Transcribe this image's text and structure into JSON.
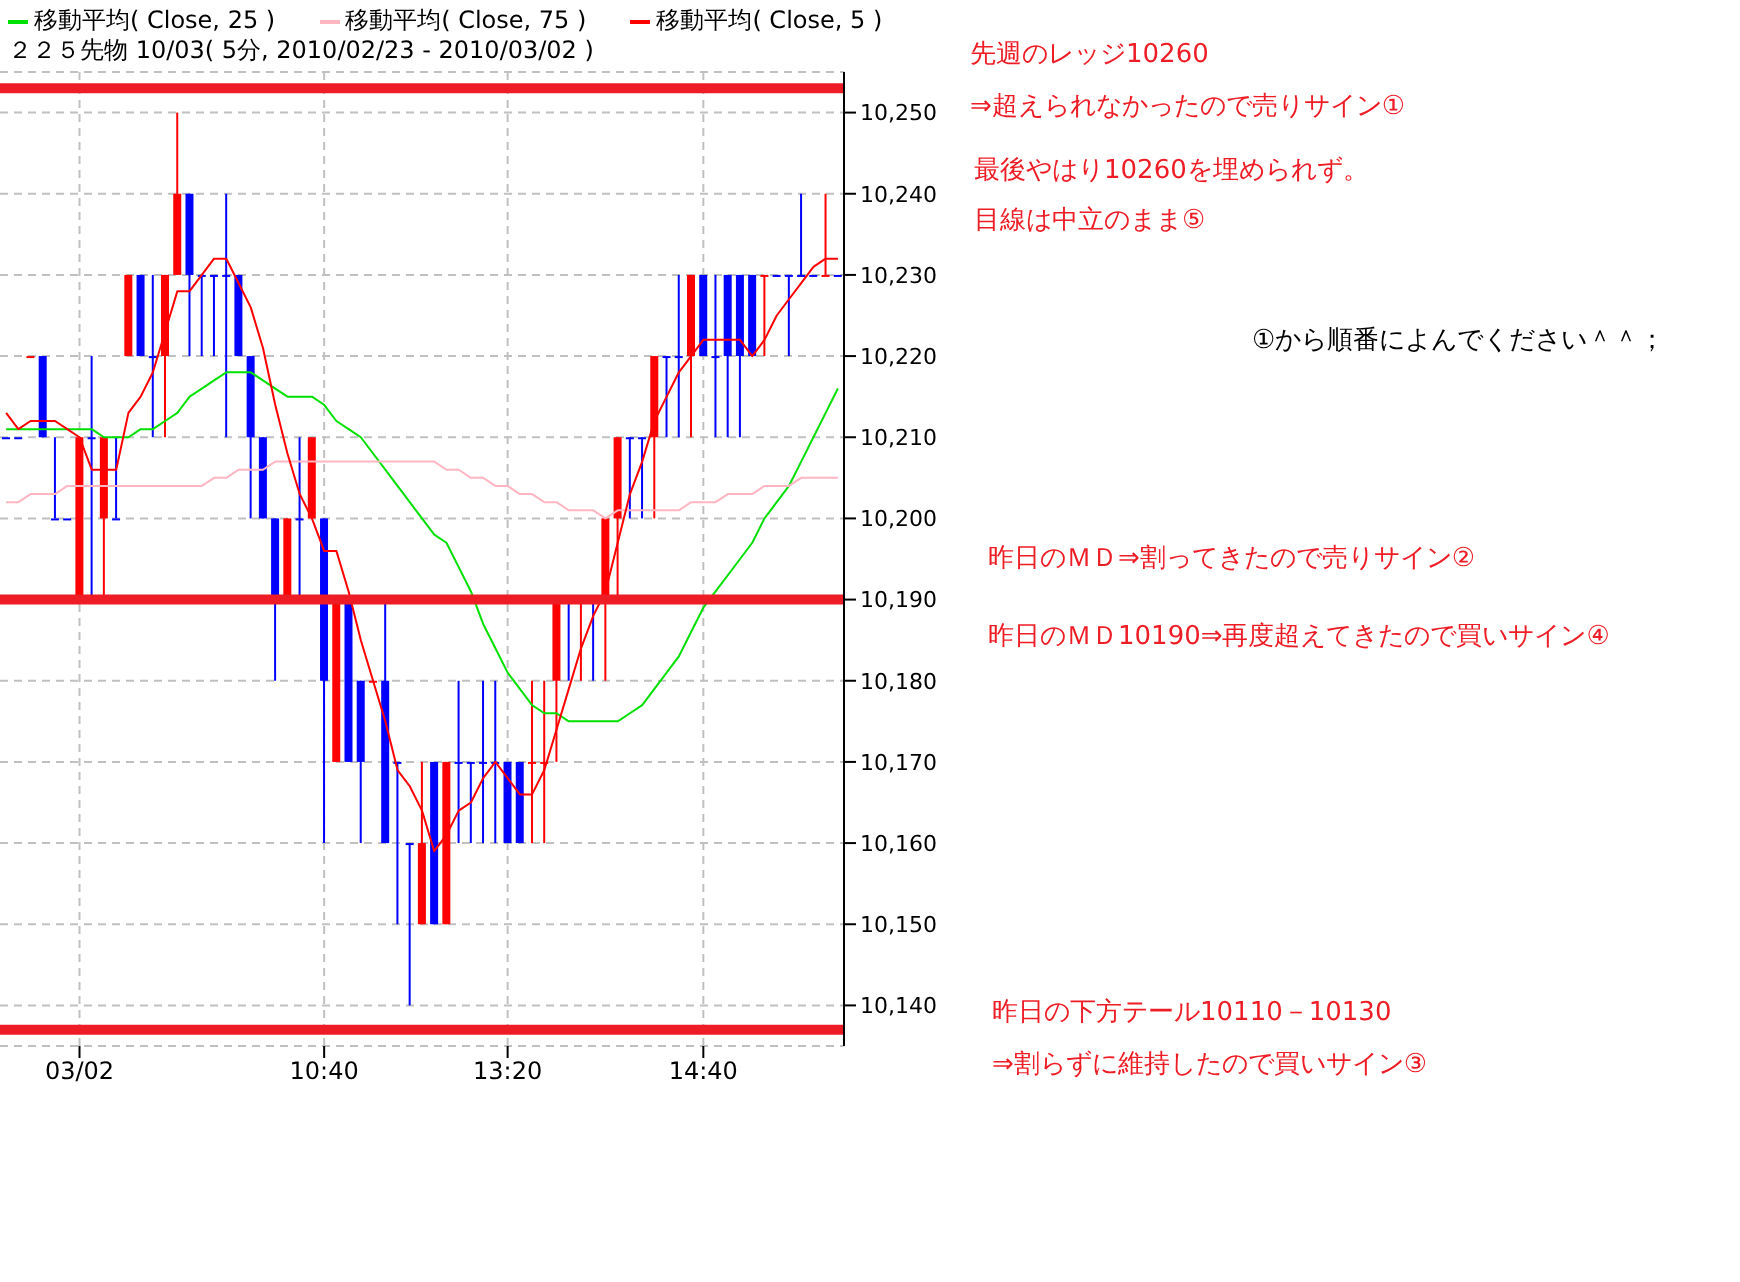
{
  "chart_data": {
    "type": "candlestick",
    "title": "２２５先物 10/03( 5分, 2010/02/23 - 2010/03/02 )",
    "categories": [
      null,
      null,
      null,
      null,
      null,
      null,
      "03/02",
      null,
      null,
      null,
      null,
      null,
      null,
      null,
      null,
      null,
      null,
      null,
      null,
      null,
      null,
      null,
      null,
      null,
      null,
      null,
      "10:40",
      null,
      null,
      null,
      null,
      null,
      null,
      null,
      null,
      null,
      null,
      null,
      null,
      null,
      null,
      "13:20",
      null,
      null,
      null,
      null,
      null,
      null,
      null,
      null,
      null,
      null,
      null,
      null,
      null,
      null,
      null,
      "14:40",
      null,
      null,
      null,
      null,
      null,
      null,
      null,
      null,
      null,
      null,
      null
    ],
    "ohlc": [
      [
        10210,
        10210,
        10210,
        10210
      ],
      [
        10210,
        10210,
        10210,
        10210
      ],
      [
        10220,
        10220,
        10220,
        10220
      ],
      [
        10220,
        10220,
        10210,
        10210
      ],
      [
        10200,
        10210,
        10200,
        10200
      ],
      [
        10200,
        10200,
        10200,
        10200
      ],
      [
        10190,
        10210,
        10190,
        10210
      ],
      [
        10210,
        10220,
        10190,
        10210
      ],
      [
        10200,
        10210,
        10190,
        10210
      ],
      [
        10200,
        10210,
        10200,
        10200
      ],
      [
        10220,
        10230,
        10220,
        10230
      ],
      [
        10230,
        10230,
        10220,
        10220
      ],
      [
        10220,
        10230,
        10210,
        10220
      ],
      [
        10220,
        10230,
        10210,
        10230
      ],
      [
        10230,
        10250,
        10230,
        10240
      ],
      [
        10240,
        10240,
        10220,
        10230
      ],
      [
        10230,
        10230,
        10220,
        10230
      ],
      [
        10230,
        10230,
        10220,
        10230
      ],
      [
        10230,
        10240,
        10210,
        10230
      ],
      [
        10230,
        10230,
        10220,
        10220
      ],
      [
        10220,
        10220,
        10200,
        10210
      ],
      [
        10210,
        10210,
        10200,
        10200
      ],
      [
        10200,
        10200,
        10180,
        10190
      ],
      [
        10190,
        10200,
        10190,
        10200
      ],
      [
        10200,
        10210,
        10190,
        10200
      ],
      [
        10200,
        10210,
        10200,
        10210
      ],
      [
        10200,
        10200,
        10160,
        10180
      ],
      [
        10170,
        10190,
        10170,
        10190
      ],
      [
        10190,
        10190,
        10170,
        10170
      ],
      [
        10180,
        10180,
        10160,
        10170
      ],
      [
        10180,
        10180,
        10180,
        10180
      ],
      [
        10180,
        10190,
        10160,
        10160
      ],
      [
        10170,
        10170,
        10150,
        10170
      ],
      [
        10160,
        10160,
        10140,
        10160
      ],
      [
        10150,
        10170,
        10150,
        10160
      ],
      [
        10170,
        10170,
        10150,
        10150
      ],
      [
        10150,
        10170,
        10150,
        10170
      ],
      [
        10170,
        10180,
        10160,
        10170
      ],
      [
        10170,
        10170,
        10160,
        10170
      ],
      [
        10170,
        10180,
        10160,
        10170
      ],
      [
        10170,
        10180,
        10160,
        10170
      ],
      [
        10170,
        10170,
        10160,
        10160
      ],
      [
        10170,
        10170,
        10160,
        10160
      ],
      [
        10170,
        10180,
        10160,
        10170
      ],
      [
        10170,
        10180,
        10160,
        10170
      ],
      [
        10180,
        10190,
        10170,
        10190
      ],
      [
        10190,
        10190,
        10180,
        10190
      ],
      [
        10190,
        10190,
        10180,
        10190
      ],
      [
        10190,
        10190,
        10180,
        10190
      ],
      [
        10190,
        10200,
        10180,
        10200
      ],
      [
        10200,
        10210,
        10190,
        10210
      ],
      [
        10210,
        10210,
        10200,
        10210
      ],
      [
        10210,
        10210,
        10200,
        10210
      ],
      [
        10210,
        10220,
        10200,
        10220
      ],
      [
        10220,
        10220,
        10210,
        10220
      ],
      [
        10220,
        10230,
        10210,
        10220
      ],
      [
        10220,
        10230,
        10210,
        10230
      ],
      [
        10230,
        10230,
        10220,
        10220
      ],
      [
        10220,
        10230,
        10210,
        10220
      ],
      [
        10230,
        10230,
        10210,
        10220
      ],
      [
        10230,
        10230,
        10210,
        10220
      ],
      [
        10230,
        10230,
        10220,
        10220
      ],
      [
        10230,
        10230,
        10220,
        10230
      ],
      [
        10230,
        10230,
        10230,
        10230
      ],
      [
        10230,
        10230,
        10220,
        10230
      ],
      [
        10230,
        10240,
        10230,
        10230
      ],
      [
        10230,
        10230,
        10230,
        10230
      ],
      [
        10230,
        10240,
        10230,
        10230
      ],
      [
        10230,
        10230,
        10230,
        10230
      ]
    ],
    "colors": [
      "#0000ff",
      "#0000ff",
      "#ff0000",
      "#0000ff",
      "#0000ff",
      "#0000ff",
      "#ff0000",
      "#0000ff",
      "#ff0000",
      "#0000ff",
      "#ff0000",
      "#0000ff",
      "#0000ff",
      "#ff0000",
      "#ff0000",
      "#0000ff",
      "#0000ff",
      "#0000ff",
      "#0000ff",
      "#0000ff",
      "#0000ff",
      "#0000ff",
      "#0000ff",
      "#ff0000",
      "#0000ff",
      "#ff0000",
      "#0000ff",
      "#ff0000",
      "#0000ff",
      "#0000ff",
      "#ff0000",
      "#0000ff",
      "#0000ff",
      "#0000ff",
      "#ff0000",
      "#0000ff",
      "#ff0000",
      "#0000ff",
      "#0000ff",
      "#0000ff",
      "#0000ff",
      "#0000ff",
      "#0000ff",
      "#ff0000",
      "#ff0000",
      "#ff0000",
      "#0000ff",
      "#ff0000",
      "#0000ff",
      "#ff0000",
      "#ff0000",
      "#0000ff",
      "#0000ff",
      "#ff0000",
      "#0000ff",
      "#0000ff",
      "#ff0000",
      "#0000ff",
      "#0000ff",
      "#0000ff",
      "#0000ff",
      "#0000ff",
      "#ff0000",
      "#0000ff",
      "#0000ff",
      "#0000ff",
      "#0000ff",
      "#ff0000",
      "#0000ff"
    ],
    "series": [
      {
        "name": "移動平均( Close, 25 )",
        "type": "line",
        "color": "#00e000",
        "values": [
          10211,
          10211,
          10211,
          10211,
          10211,
          10211,
          10211,
          10211,
          10210,
          10210,
          10210,
          10211,
          10211,
          10212,
          10213,
          10215,
          10216,
          10217,
          10218,
          10218,
          10218,
          10217,
          10216,
          10215,
          10215,
          10215,
          10214,
          10212,
          10211,
          10210,
          10208,
          10206,
          10204,
          10202,
          10200,
          10198,
          10197,
          10194,
          10191,
          10187,
          10184,
          10181,
          10179,
          10177,
          10176,
          10176,
          10175,
          10175,
          10175,
          10175,
          10175,
          10176,
          10177,
          10179,
          10181,
          10183,
          10186,
          10189,
          10191,
          10193,
          10195,
          10197,
          10200,
          10202,
          10204,
          10207,
          10210,
          10213,
          10216
        ]
      },
      {
        "name": "移動平均( Close, 75 )",
        "type": "line",
        "color": "#ffb6c1",
        "values": [
          10202,
          10202,
          10203,
          10203,
          10203,
          10204,
          10204,
          10204,
          10204,
          10204,
          10204,
          10204,
          10204,
          10204,
          10204,
          10204,
          10204,
          10205,
          10205,
          10206,
          10206,
          10206,
          10207,
          10207,
          10207,
          10207,
          10207,
          10207,
          10207,
          10207,
          10207,
          10207,
          10207,
          10207,
          10207,
          10207,
          10206,
          10206,
          10205,
          10205,
          10204,
          10204,
          10203,
          10203,
          10202,
          10202,
          10201,
          10201,
          10201,
          10200,
          10201,
          10201,
          10201,
          10201,
          10201,
          10201,
          10202,
          10202,
          10202,
          10203,
          10203,
          10203,
          10204,
          10204,
          10204,
          10205,
          10205,
          10205,
          10205
        ]
      },
      {
        "name": "移動平均( Close, 5 )",
        "type": "line",
        "color": "#ff0000",
        "values": [
          10213,
          10211,
          10212,
          10212,
          10212,
          10211,
          10210,
          10206,
          10206,
          10206,
          10213,
          10215,
          10218,
          10223,
          10228,
          10228,
          10230,
          10232,
          10232,
          10229,
          10226,
          10221,
          10214,
          10208,
          10203,
          10200,
          10196,
          10196,
          10191,
          10185,
          10180,
          10175,
          10169,
          10167,
          10164,
          10159,
          10161,
          10164,
          10165,
          10168,
          10170,
          10168,
          10166,
          10166,
          10169,
          10174,
          10179,
          10184,
          10188,
          10191,
          10197,
          10203,
          10207,
          10212,
          10215,
          10218,
          10220,
          10222,
          10222,
          10222,
          10222,
          10220,
          10222,
          10225,
          10227,
          10229,
          10231,
          10232,
          10232
        ]
      }
    ],
    "ylim": [
      10135,
      10255
    ],
    "yticks": [
      {
        "value": 10140,
        "label": "10,140"
      },
      {
        "value": 10150,
        "label": "10,150"
      },
      {
        "value": 10160,
        "label": "10,160"
      },
      {
        "value": 10170,
        "label": "10,170"
      },
      {
        "value": 10180,
        "label": "10,180"
      },
      {
        "value": 10190,
        "label": "10,190"
      },
      {
        "value": 10200,
        "label": "10,200"
      },
      {
        "value": 10210,
        "label": "10,210"
      },
      {
        "value": 10220,
        "label": "10,220"
      },
      {
        "value": 10230,
        "label": "10,230"
      },
      {
        "value": 10240,
        "label": "10,240"
      },
      {
        "value": 10250,
        "label": "10,250"
      }
    ],
    "ref_lines": [
      {
        "axis": "y",
        "value": 10253,
        "color": "#ee1c25"
      },
      {
        "axis": "y",
        "value": 10190,
        "color": "#ee1c25"
      },
      {
        "axis": "y",
        "value": 10137,
        "color": "#ee1c25"
      }
    ],
    "annotations": [
      "先週のレッジ10260",
      "⇒超えられなかったので売りサイン①",
      "最後やはり10260を埋められず。",
      "目線は中立のまま⑤",
      "①から順番によんでください＾＾；",
      "昨日のＭＤ⇒割ってきたので売りサイン②",
      "昨日のＭＤ10190⇒再度超えてきたので買いサイン④",
      "昨日の下方テール10110－10130",
      "⇒割らずに維持したので買いサイン③"
    ],
    "grid": true,
    "legend": "top left",
    "marker": "none",
    "line_style": "solid"
  }
}
